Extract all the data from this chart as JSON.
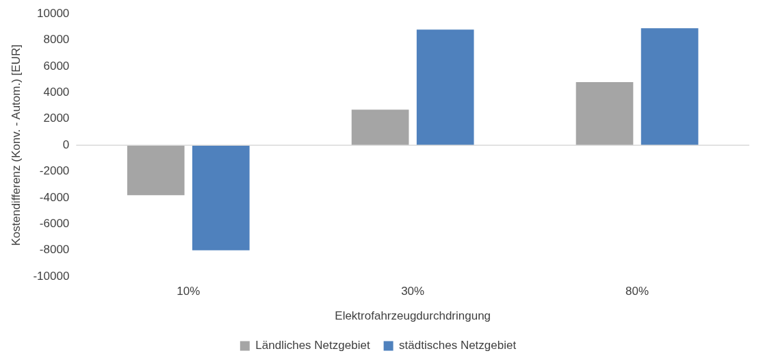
{
  "chart_data": {
    "type": "bar",
    "xlabel": "Elektrofahrzeugdurchdringung",
    "ylabel": "Kostendifferenz (Konv. - Autom.) [EUR]",
    "categories": [
      "10%",
      "30%",
      "80%"
    ],
    "series": [
      {
        "name": "Ländliches Netzgebiet",
        "color": "#a5a5a5",
        "values": [
          -3800,
          2700,
          4800
        ]
      },
      {
        "name": "städtisches Netzgebiet",
        "color": "#4f81bd",
        "values": [
          -8000,
          8800,
          8900
        ]
      }
    ],
    "ylim": [
      -10000,
      10000
    ],
    "yticks": [
      -10000,
      -8000,
      -6000,
      -4000,
      -2000,
      0,
      2000,
      4000,
      6000,
      8000,
      10000
    ],
    "ref_lines": [
      {
        "axis": "y",
        "value": 0,
        "color": "#d9d9d9"
      }
    ],
    "grid": false,
    "legend": "bottom"
  }
}
